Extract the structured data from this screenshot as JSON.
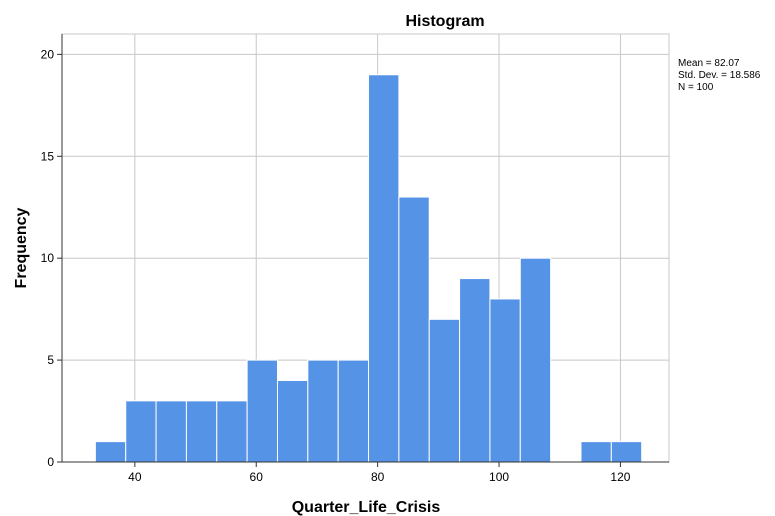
{
  "chart_data": {
    "type": "bar",
    "title": "Histogram",
    "xlabel": "Quarter_Life_Crisis",
    "ylabel": "Frequency",
    "bin_width": 5,
    "bin_starts": [
      33.5,
      38.5,
      43.5,
      48.5,
      53.5,
      58.5,
      63.5,
      68.5,
      73.5,
      78.5,
      83.5,
      88.5,
      93.5,
      98.5,
      103.5,
      108.5,
      113.5,
      118.5
    ],
    "values": [
      1,
      3,
      3,
      3,
      3,
      5,
      4,
      5,
      5,
      19,
      13,
      7,
      9,
      8,
      10,
      0,
      1,
      1
    ],
    "xlim": [
      28,
      128
    ],
    "ylim": [
      0,
      21
    ],
    "x_ticks": [
      40,
      60,
      80,
      100,
      120
    ],
    "y_ticks": [
      0,
      5,
      10,
      15,
      20
    ],
    "grid": true,
    "colors": {
      "bar": "#5593e6",
      "bar_edge": "#ffffff",
      "grid": "#c8c8c8",
      "axis": "#333333"
    },
    "stats": [
      "Mean = 82.07",
      "Std. Dev. = 18.586",
      "N = 100"
    ]
  }
}
